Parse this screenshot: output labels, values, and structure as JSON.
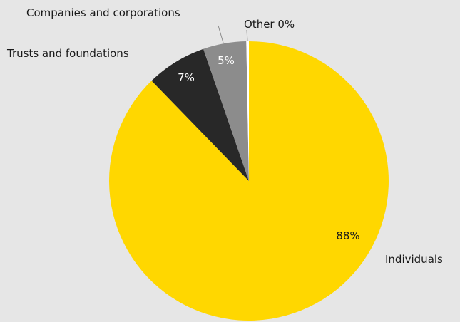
{
  "chart_data": {
    "type": "pie",
    "categories": [
      "Individuals",
      "Trusts and foundations",
      "Companies and corporations",
      "Other"
    ],
    "values": [
      88,
      7,
      5,
      0.3
    ],
    "value_labels": [
      "88%",
      "7%",
      "5%",
      ""
    ],
    "category_labels": [
      "Individuals",
      "Trusts and foundations",
      "Companies and corporations",
      "Other 0%"
    ],
    "colors": [
      "#ffd700",
      "#282828",
      "#8c8c8c",
      "#ffffff"
    ],
    "value_label_colors": [
      "#1a1a1a",
      "#ffffff",
      "#ffffff",
      "#1a1a1a"
    ],
    "start": "12 o'clock",
    "direction": "clockwise",
    "legend": "none"
  }
}
